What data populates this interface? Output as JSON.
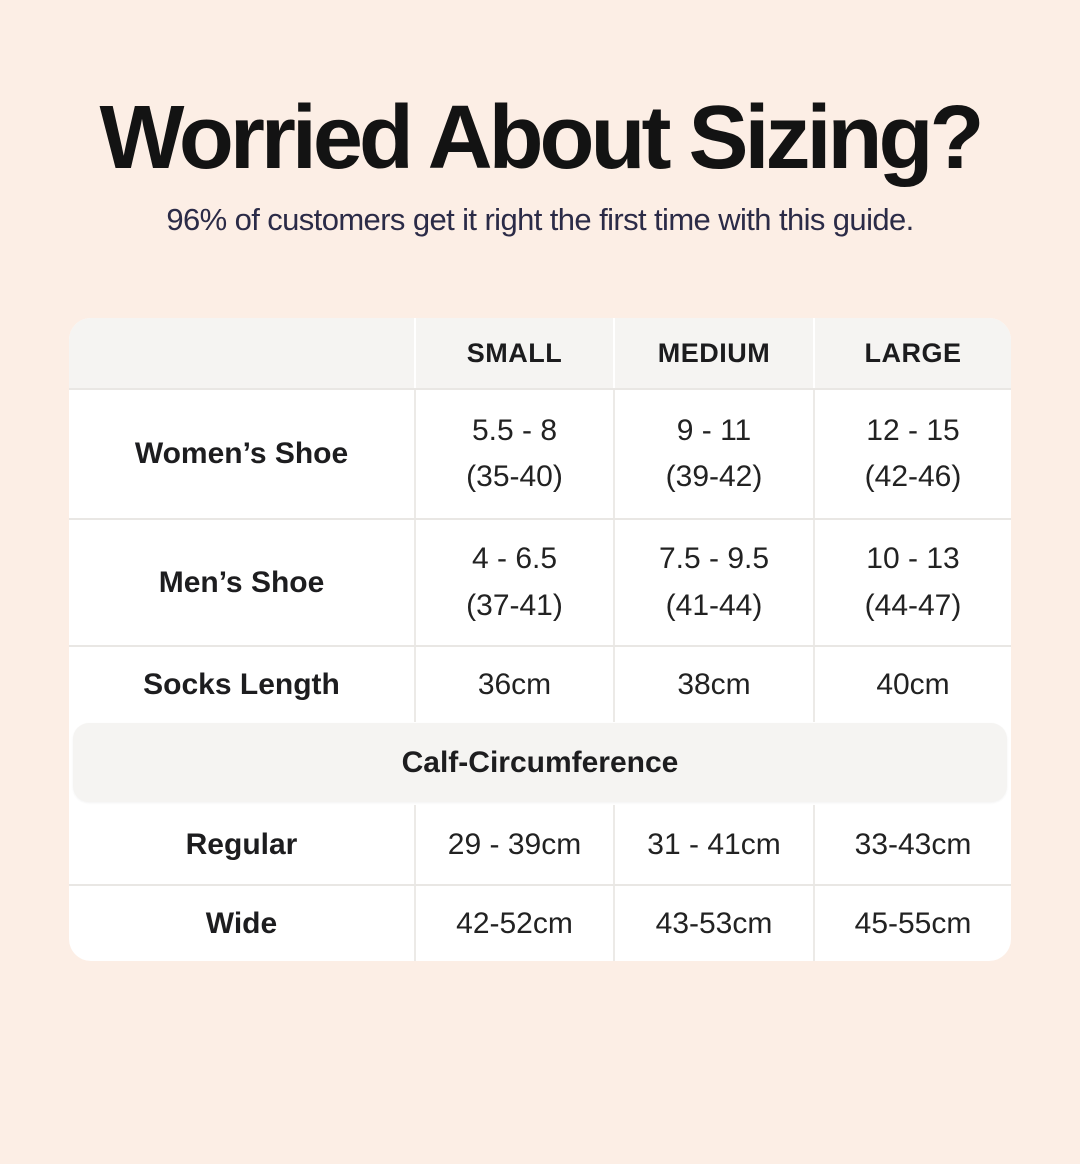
{
  "colors": {
    "background": "#fceee5",
    "card": "#ffffff",
    "header_gray": "#f5f4f2",
    "divider": "#e9e7e4",
    "title_text": "#131313",
    "subtitle_text": "#2b2b47",
    "table_text": "#1d1d1f"
  },
  "header": {
    "title": "Worried About Sizing?",
    "subtitle": "96% of customers get it right the first time with this guide."
  },
  "table": {
    "columns": [
      "SMALL",
      "MEDIUM",
      "LARGE"
    ],
    "shoe_rows": [
      {
        "label": "Women’s Shoe",
        "small": [
          "5.5 - 8",
          "(35-40)"
        ],
        "medium": [
          "9 - 11",
          "(39-42)"
        ],
        "large": [
          "12 - 15",
          "(42-46)"
        ]
      },
      {
        "label": "Men’s Shoe",
        "small": [
          "4 - 6.5",
          "(37-41)"
        ],
        "medium": [
          "7.5 - 9.5",
          "(41-44)"
        ],
        "large": [
          "10 - 13",
          "(44-47)"
        ]
      }
    ],
    "socks_row": {
      "label": "Socks Length",
      "small": "36cm",
      "medium": "38cm",
      "large": "40cm"
    },
    "section_header": "Calf-Circumference",
    "calf_rows": [
      {
        "label": "Regular",
        "small": "29 - 39cm",
        "medium": "31 - 41cm",
        "large": "33-43cm"
      },
      {
        "label": "Wide",
        "small": "42-52cm",
        "medium": "43-53cm",
        "large": "45-55cm"
      }
    ]
  }
}
